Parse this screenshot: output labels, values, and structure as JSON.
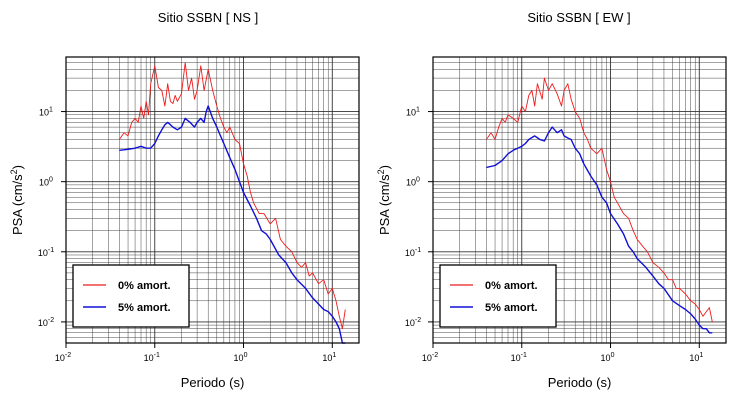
{
  "colors": {
    "undamped": "#ee1c1c",
    "damped": "#1010d8",
    "grid": "#333333",
    "frame": "#000000"
  },
  "chart_data": [
    {
      "type": "line",
      "title": "Sitio SSBN [ NS ]",
      "xlabel": "Periodo (s)",
      "ylabel": "PSA (cm/s",
      "ylabel_sup": "2",
      "ylabel_close": ")",
      "xscale": "log",
      "yscale": "log",
      "xlim": [
        0.01,
        20
      ],
      "ylim": [
        0.005,
        60
      ],
      "grid": true,
      "legend": "bottom-left",
      "xticks": [
        {
          "b": "10",
          "e": "-2",
          "v": 0.01
        },
        {
          "b": "10",
          "e": "-1",
          "v": 0.1
        },
        {
          "b": "10",
          "e": "0",
          "v": 1
        },
        {
          "b": "10",
          "e": "1",
          "v": 10
        }
      ],
      "yticks": [
        {
          "b": "10",
          "e": "-2",
          "v": 0.01
        },
        {
          "b": "10",
          "e": "-1",
          "v": 0.1
        },
        {
          "b": "10",
          "e": "0",
          "v": 1
        },
        {
          "b": "10",
          "e": "1",
          "v": 10
        }
      ],
      "series": [
        {
          "name": "0% amort.",
          "color": "#ee1c1c",
          "x": [
            0.04,
            0.045,
            0.05,
            0.055,
            0.06,
            0.065,
            0.07,
            0.075,
            0.08,
            0.085,
            0.09,
            0.1,
            0.11,
            0.12,
            0.13,
            0.14,
            0.15,
            0.16,
            0.17,
            0.18,
            0.2,
            0.22,
            0.24,
            0.26,
            0.28,
            0.3,
            0.33,
            0.36,
            0.4,
            0.45,
            0.5,
            0.55,
            0.6,
            0.65,
            0.7,
            0.8,
            0.9,
            1.0,
            1.1,
            1.2,
            1.3,
            1.5,
            1.7,
            2.0,
            2.3,
            2.6,
            3.0,
            3.5,
            4.0,
            4.5,
            5.0,
            5.5,
            6.0,
            7.0,
            8.0,
            9.0,
            10.0,
            11.0,
            12.0,
            13.0,
            14.0
          ],
          "y": [
            4,
            5,
            4.5,
            7,
            8,
            7,
            12,
            8,
            14,
            9,
            25,
            45,
            22,
            20,
            12,
            25,
            14,
            13,
            17,
            14,
            18,
            50,
            20,
            30,
            15,
            20,
            45,
            20,
            40,
            20,
            12,
            8,
            6,
            5,
            6,
            4,
            3.5,
            1.8,
            1.2,
            0.7,
            0.5,
            0.35,
            0.35,
            0.25,
            0.3,
            0.15,
            0.12,
            0.1,
            0.07,
            0.06,
            0.07,
            0.045,
            0.05,
            0.035,
            0.04,
            0.025,
            0.03,
            0.02,
            0.012,
            0.008,
            0.015
          ]
        },
        {
          "name": "5% amort.",
          "color": "#1010d8",
          "x": [
            0.04,
            0.05,
            0.06,
            0.07,
            0.08,
            0.09,
            0.1,
            0.11,
            0.12,
            0.13,
            0.14,
            0.15,
            0.16,
            0.18,
            0.2,
            0.22,
            0.25,
            0.28,
            0.3,
            0.33,
            0.36,
            0.38,
            0.4,
            0.45,
            0.5,
            0.55,
            0.6,
            0.7,
            0.8,
            0.9,
            1.0,
            1.2,
            1.4,
            1.6,
            1.8,
            2.0,
            2.5,
            3.0,
            3.5,
            4.0,
            5.0,
            6.0,
            7.0,
            8.0,
            9.0,
            10.0,
            11.0,
            12.0,
            13.0,
            14.0
          ],
          "y": [
            2.8,
            2.9,
            3,
            3.2,
            3,
            3,
            3.5,
            4.5,
            5.5,
            6.5,
            7,
            6.5,
            6,
            5.5,
            6,
            8,
            7,
            6,
            7,
            8,
            7,
            10,
            12,
            8,
            6,
            4.5,
            3.5,
            2.2,
            1.5,
            1.0,
            0.7,
            0.45,
            0.3,
            0.2,
            0.18,
            0.15,
            0.09,
            0.07,
            0.05,
            0.04,
            0.03,
            0.022,
            0.018,
            0.015,
            0.014,
            0.012,
            0.01,
            0.008,
            0.005,
            0.005
          ]
        }
      ]
    },
    {
      "type": "line",
      "title": "Sitio SSBN [ EW ]",
      "xlabel": "Periodo (s)",
      "ylabel": "PSA (cm/s",
      "ylabel_sup": "2",
      "ylabel_close": ")",
      "xscale": "log",
      "yscale": "log",
      "xlim": [
        0.01,
        20
      ],
      "ylim": [
        0.005,
        60
      ],
      "grid": true,
      "legend": "bottom-left",
      "xticks": [
        {
          "b": "10",
          "e": "-2",
          "v": 0.01
        },
        {
          "b": "10",
          "e": "-1",
          "v": 0.1
        },
        {
          "b": "10",
          "e": "0",
          "v": 1
        },
        {
          "b": "10",
          "e": "1",
          "v": 10
        }
      ],
      "yticks": [
        {
          "b": "10",
          "e": "-2",
          "v": 0.01
        },
        {
          "b": "10",
          "e": "-1",
          "v": 0.1
        },
        {
          "b": "10",
          "e": "0",
          "v": 1
        },
        {
          "b": "10",
          "e": "1",
          "v": 10
        }
      ],
      "series": [
        {
          "name": "0% amort.",
          "color": "#ee1c1c",
          "x": [
            0.04,
            0.045,
            0.05,
            0.055,
            0.06,
            0.065,
            0.07,
            0.08,
            0.09,
            0.1,
            0.11,
            0.12,
            0.13,
            0.14,
            0.15,
            0.17,
            0.18,
            0.2,
            0.22,
            0.25,
            0.28,
            0.3,
            0.33,
            0.36,
            0.4,
            0.45,
            0.5,
            0.55,
            0.6,
            0.7,
            0.8,
            0.9,
            1.0,
            1.1,
            1.2,
            1.4,
            1.6,
            1.8,
            2.0,
            2.3,
            2.6,
            3.0,
            3.5,
            4.0,
            4.5,
            5.0,
            5.5,
            6.0,
            7.0,
            8.0,
            9.0,
            10.0,
            11.0,
            12.0,
            13.0,
            14.0
          ],
          "y": [
            4,
            5,
            4,
            6,
            8,
            7,
            9,
            8,
            7,
            12,
            10,
            17,
            20,
            12,
            25,
            15,
            30,
            20,
            25,
            18,
            12,
            20,
            25,
            15,
            10,
            8,
            5,
            4,
            3,
            2.5,
            3,
            1.5,
            1.0,
            0.6,
            0.5,
            0.35,
            0.3,
            0.2,
            0.15,
            0.12,
            0.1,
            0.07,
            0.06,
            0.05,
            0.04,
            0.04,
            0.03,
            0.03,
            0.025,
            0.02,
            0.018,
            0.015,
            0.012,
            0.014,
            0.016,
            0.01
          ]
        },
        {
          "name": "5% amort.",
          "color": "#1010d8",
          "x": [
            0.04,
            0.05,
            0.06,
            0.07,
            0.08,
            0.09,
            0.1,
            0.11,
            0.12,
            0.14,
            0.16,
            0.18,
            0.2,
            0.22,
            0.25,
            0.28,
            0.3,
            0.33,
            0.36,
            0.4,
            0.45,
            0.5,
            0.6,
            0.7,
            0.8,
            0.9,
            1.0,
            1.2,
            1.4,
            1.6,
            1.8,
            2.0,
            2.5,
            3.0,
            3.5,
            4.0,
            5.0,
            6.0,
            7.0,
            8.0,
            9.0,
            10.0,
            11.0,
            12.0,
            13.0,
            14.0
          ],
          "y": [
            1.6,
            1.7,
            2,
            2.5,
            2.8,
            3,
            3.2,
            3.5,
            4,
            4.5,
            4,
            3.8,
            5,
            6,
            5,
            5.5,
            4.5,
            4.2,
            4,
            3,
            2.5,
            1.8,
            1.2,
            0.9,
            0.6,
            0.5,
            0.35,
            0.25,
            0.18,
            0.12,
            0.1,
            0.08,
            0.06,
            0.045,
            0.035,
            0.03,
            0.02,
            0.017,
            0.015,
            0.013,
            0.011,
            0.009,
            0.008,
            0.008,
            0.007,
            0.007
          ]
        }
      ]
    }
  ]
}
